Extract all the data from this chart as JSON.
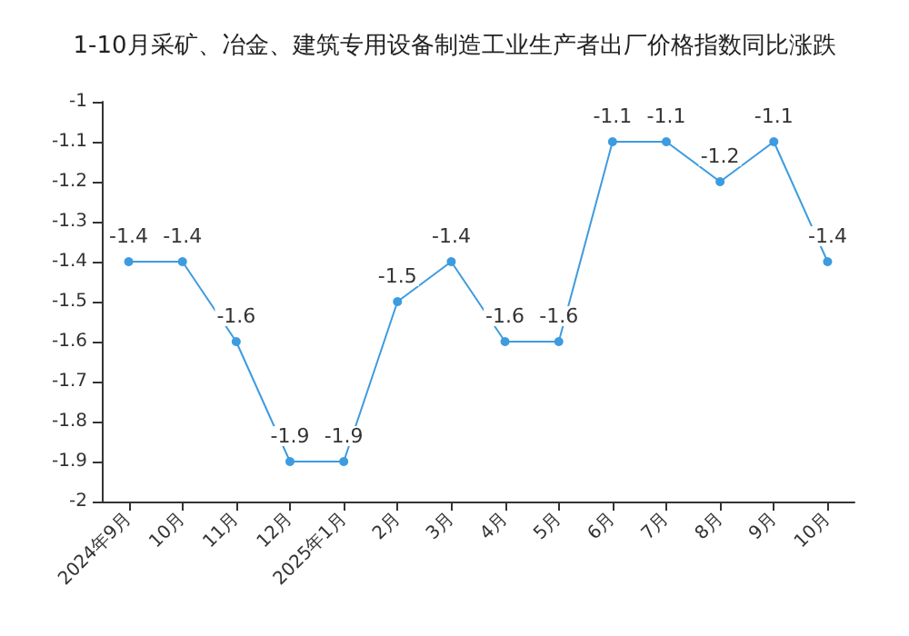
{
  "chart_data": {
    "type": "line",
    "title": "1-10月采矿、冶金、建筑专用设备制造工业生产者出厂价格指数同比涨跌",
    "categories": [
      "2024年9月",
      "10月",
      "11月",
      "12月",
      "2025年1月",
      "2月",
      "3月",
      "4月",
      "5月",
      "6月",
      "7月",
      "8月",
      "9月",
      "10月"
    ],
    "series": [
      {
        "color": "#3d9be0",
        "values": [
          -1.4,
          -1.4,
          -1.6,
          -1.9,
          -1.9,
          -1.5,
          -1.4,
          -1.6,
          -1.6,
          -1.1,
          -1.1,
          -1.2,
          -1.1,
          -1.4
        ]
      }
    ],
    "ylim": [
      -2,
      -1
    ],
    "yticks": [
      -2,
      -1.9,
      -1.8,
      -1.7,
      -1.6,
      -1.5,
      -1.4,
      -1.3,
      -1.2,
      -1.1,
      -1
    ],
    "data_labels": true,
    "grid": false,
    "marker": "circle",
    "line_style": "solid"
  }
}
